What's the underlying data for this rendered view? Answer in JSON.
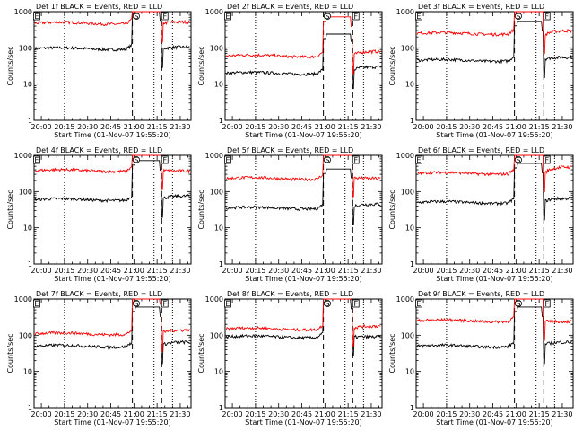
{
  "chart_data": [
    {
      "type": "line",
      "title": "Det 1f BLACK = Events, RED = LLD",
      "xlabel": "Start Time (01-Nov-07 19:55:20)",
      "ylabel": "Counts/sec",
      "series": [
        {
          "color": "#000000",
          "level_before": 95,
          "level_after": 95,
          "end": 105
        },
        {
          "color": "#ff0000",
          "level_before": 480,
          "level_after": 480,
          "end": 520
        }
      ]
    },
    {
      "type": "line",
      "title": "Det 2f BLACK = Events, RED = LLD",
      "xlabel": "Start Time (01-Nov-07 19:55:20)",
      "ylabel": "Counts/sec",
      "series": [
        {
          "color": "#000000",
          "level_before": 20,
          "level_after": 25,
          "end": 30
        },
        {
          "color": "#ff0000",
          "level_before": 60,
          "level_after": 65,
          "end": 80
        }
      ]
    },
    {
      "type": "line",
      "title": "Det 3f BLACK = Events, RED = LLD",
      "xlabel": "Start Time (01-Nov-07 19:55:20)",
      "ylabel": "Counts/sec",
      "series": [
        {
          "color": "#000000",
          "level_before": 45,
          "level_after": 50,
          "end": 55
        },
        {
          "color": "#ff0000",
          "level_before": 250,
          "level_after": 230,
          "end": 300
        }
      ]
    },
    {
      "type": "line",
      "title": "Det 4f BLACK = Events, RED = LLD",
      "xlabel": "Start Time (01-Nov-07 19:55:20)",
      "ylabel": "Counts/sec",
      "series": [
        {
          "color": "#000000",
          "level_before": 60,
          "level_after": 65,
          "end": 75
        },
        {
          "color": "#ff0000",
          "level_before": 380,
          "level_after": 380,
          "end": 370
        }
      ]
    },
    {
      "type": "line",
      "title": "Det 5f BLACK = Events, RED = LLD",
      "xlabel": "Start Time (01-Nov-07 19:55:20)",
      "ylabel": "Counts/sec",
      "series": [
        {
          "color": "#000000",
          "level_before": 35,
          "level_after": 40,
          "end": 45
        },
        {
          "color": "#ff0000",
          "level_before": 230,
          "level_after": 240,
          "end": 230
        }
      ]
    },
    {
      "type": "line",
      "title": "Det 6f BLACK = Events, RED = LLD",
      "xlabel": "Start Time (01-Nov-07 19:55:20)",
      "ylabel": "Counts/sec",
      "series": [
        {
          "color": "#000000",
          "level_before": 50,
          "level_after": 55,
          "end": 65
        },
        {
          "color": "#ff0000",
          "level_before": 320,
          "level_after": 330,
          "end": 480
        }
      ]
    },
    {
      "type": "line",
      "title": "Det 7f BLACK = Events, RED = LLD",
      "xlabel": "Start Time (01-Nov-07 19:55:20)",
      "ylabel": "Counts/sec",
      "series": [
        {
          "color": "#000000",
          "level_before": 50,
          "level_after": 55,
          "end": 65
        },
        {
          "color": "#ff0000",
          "level_before": 110,
          "level_after": 120,
          "end": 140
        }
      ]
    },
    {
      "type": "line",
      "title": "Det 8f BLACK = Events, RED = LLD",
      "xlabel": "Start Time (01-Nov-07 19:55:20)",
      "ylabel": "Counts/sec",
      "series": [
        {
          "color": "#000000",
          "level_before": 90,
          "level_after": 90,
          "end": 90
        },
        {
          "color": "#ff0000",
          "level_before": 150,
          "level_after": 160,
          "end": 180
        }
      ]
    },
    {
      "type": "line",
      "title": "Det 9f BLACK = Events, RED = LLD",
      "xlabel": "Start Time (01-Nov-07 19:55:20)",
      "ylabel": "Counts/sec",
      "series": [
        {
          "color": "#000000",
          "level_before": 50,
          "level_after": 55,
          "end": 65
        },
        {
          "color": "#ff0000",
          "level_before": 250,
          "level_after": 240,
          "end": 240
        }
      ]
    }
  ],
  "axes": {
    "x_tick_labels": [
      "20:00",
      "20:15",
      "20:30",
      "20:45",
      "21:00",
      "21:15",
      "21:30"
    ],
    "x_tick_minutes": [
      0,
      15,
      30,
      45,
      60,
      75,
      90
    ],
    "xlim_minutes": [
      -4.7,
      97
    ],
    "y_tick_labels": [
      "1",
      "10",
      "100",
      "1000"
    ],
    "y_tick_values": [
      1,
      10,
      100,
      1000
    ],
    "ylim": [
      1,
      1000
    ],
    "y_scale": "log"
  },
  "markers": {
    "dotted_minutes": [
      15,
      73,
      85
    ],
    "dashed_minutes": [
      59,
      78
    ],
    "letters": [
      {
        "text": "E",
        "minute": -3
      },
      {
        "text": "S",
        "minute": 61.5
      },
      {
        "text": "F",
        "minute": 80
      }
    ]
  }
}
